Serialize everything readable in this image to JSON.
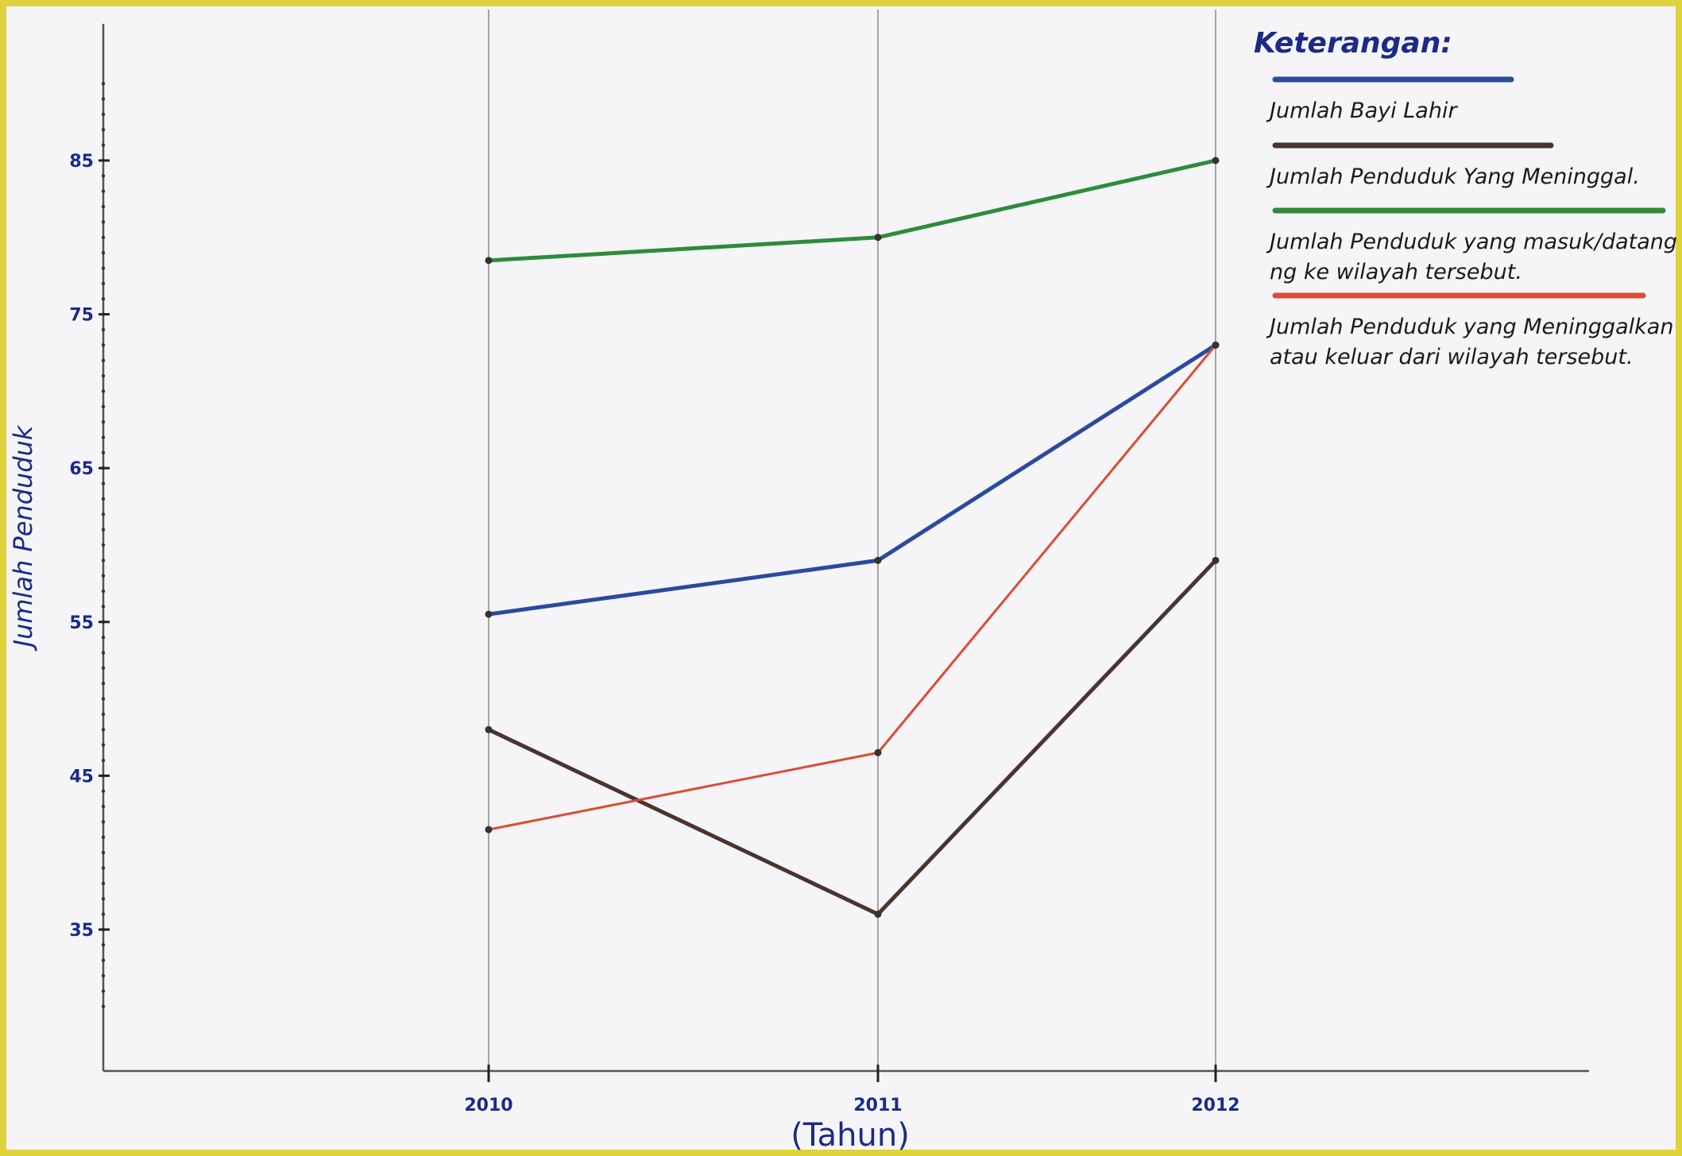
{
  "chart_data": {
    "type": "line",
    "title": "",
    "xlabel": "(Tahun)",
    "ylabel": "Jumlah Penduduk",
    "categories": [
      "2010",
      "2011",
      "2012"
    ],
    "yticks": [
      "35",
      "45",
      "55",
      "65",
      "75",
      "85"
    ],
    "ylim": [
      29,
      90
    ],
    "grid": "vertical lines at categories",
    "legend_title": "Keterangan:",
    "legend_position": "top-right",
    "series": [
      {
        "name": "Jumlah Bayi Lahir",
        "values": [
          55.5,
          59,
          73
        ],
        "color": "#2a4aa0"
      },
      {
        "name": "Jumlah Penduduk Yang Meninggal.",
        "values": [
          48,
          36,
          59
        ],
        "color": "#4a3430"
      },
      {
        "name": "Jumlah Penduduk yang masuk/datang ke wilayah tersebut.",
        "legend_lines": [
          "Jumlah Penduduk yang masuk/datang",
          "ng ke wilayah tersebut."
        ],
        "values": [
          78.5,
          80,
          85
        ],
        "color": "#2e8b3a"
      },
      {
        "name": "Jumlah Penduduk yang Meninggalkan atau keluar dari wilayah tersebut.",
        "legend_lines": [
          "Jumlah Penduduk yang Meninggalkan",
          "atau keluar dari wilayah tersebut."
        ],
        "values": [
          41.5,
          46.5,
          73
        ],
        "color": "#e04a32"
      }
    ]
  },
  "page_colors": {
    "paper": "#f5f5f8",
    "border": "#e0d23a",
    "axis": "#555555"
  }
}
